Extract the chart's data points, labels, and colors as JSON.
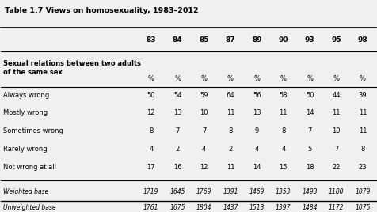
{
  "title": "Table 1.7 Views on homosexuality, 1983–2012",
  "years": [
    "83",
    "84",
    "85",
    "87",
    "89",
    "90",
    "93",
    "95",
    "98"
  ],
  "section_header": "Sexual relations between two adults\nof the same sex",
  "pct_row": [
    "%",
    "%",
    "%",
    "%",
    "%",
    "%",
    "%",
    "%",
    "%"
  ],
  "rows": [
    {
      "label": "Always wrong",
      "values": [
        "50",
        "54",
        "59",
        "64",
        "56",
        "58",
        "50",
        "44",
        "39"
      ]
    },
    {
      "label": "Mostly wrong",
      "values": [
        "12",
        "13",
        "10",
        "11",
        "13",
        "11",
        "14",
        "11",
        "11"
      ]
    },
    {
      "label": "Sometimes wrong",
      "values": [
        "8",
        "7",
        "7",
        "8",
        "9",
        "8",
        "7",
        "10",
        "11"
      ]
    },
    {
      "label": "Rarely wrong",
      "values": [
        "4",
        "2",
        "4",
        "2",
        "4",
        "4",
        "5",
        "7",
        "8"
      ]
    },
    {
      "label": "Not wrong at all",
      "values": [
        "17",
        "16",
        "12",
        "11",
        "14",
        "15",
        "18",
        "22",
        "23"
      ]
    }
  ],
  "base_rows": [
    {
      "label": "Weighted base",
      "values": [
        "1719",
        "1645",
        "1769",
        "1391",
        "1469",
        "1353",
        "1493",
        "1180",
        "1079"
      ]
    },
    {
      "label": "Unweighted base",
      "values": [
        "1761",
        "1675",
        "1804",
        "1437",
        "1513",
        "1397",
        "1484",
        "1172",
        "1075"
      ]
    }
  ],
  "bg_color": "#f0f0f0",
  "text_color": "#000000"
}
